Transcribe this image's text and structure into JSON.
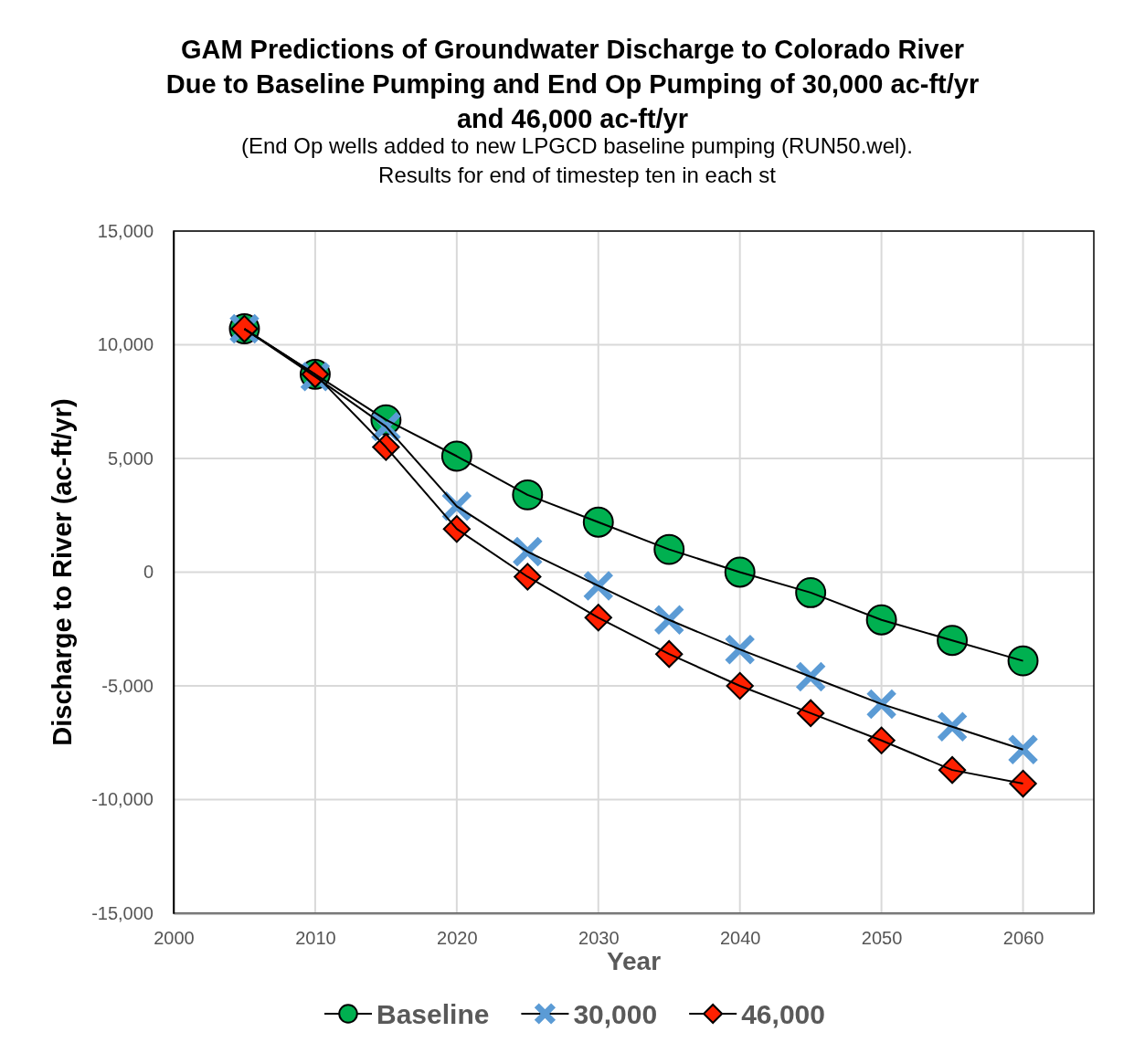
{
  "chart_data": {
    "type": "line",
    "title": "GAM Predictions of Groundwater Discharge to Colorado River\nDue to Baseline Pumping and End Op Pumping of 30,000 ac-ft/yr\nand 46,000 ac-ft/yr",
    "subtitle": "(End Op wells added to new LPGCD baseline pumping (RUN50.wel).\nResults for end of timestep ten in each st",
    "xlabel": "Year",
    "ylabel": "Discharge to River (ac-ft/yr)",
    "x": [
      2005,
      2010,
      2015,
      2020,
      2025,
      2030,
      2035,
      2040,
      2045,
      2050,
      2055,
      2060
    ],
    "series": [
      {
        "name": "Baseline",
        "color": "#00b050",
        "marker": "circle",
        "values": [
          10700,
          8700,
          6700,
          5100,
          3400,
          2200,
          1000,
          0,
          -900,
          -2100,
          -3000,
          -3900
        ]
      },
      {
        "name": "30,000",
        "color": "#5b9bd5",
        "marker": "cross",
        "values": [
          10700,
          8600,
          6400,
          2900,
          900,
          -600,
          -2100,
          -3400,
          -4600,
          -5800,
          -6800,
          -7800
        ]
      },
      {
        "name": "46,000",
        "color": "#ff2000",
        "marker": "diamond",
        "values": [
          10700,
          8700,
          5500,
          1900,
          -200,
          -2000,
          -3600,
          -5000,
          -6200,
          -7400,
          -8700,
          -9300
        ]
      }
    ],
    "xlim": [
      2000,
      2065
    ],
    "xticks": [
      2000,
      2010,
      2020,
      2030,
      2040,
      2050,
      2060
    ],
    "ylim": [
      -15000,
      15000
    ],
    "yticks": [
      {
        "value": -15000,
        "label": "-15,000"
      },
      {
        "value": -10000,
        "label": "-10,000"
      },
      {
        "value": -5000,
        "label": "-5,000"
      },
      0,
      {
        "value": 5000,
        "label": "5,000"
      },
      {
        "value": 10000,
        "label": "10,000"
      },
      {
        "value": 15000,
        "label": "15,000"
      }
    ],
    "grid": true,
    "legend": "bottom",
    "line_style": "solid"
  }
}
